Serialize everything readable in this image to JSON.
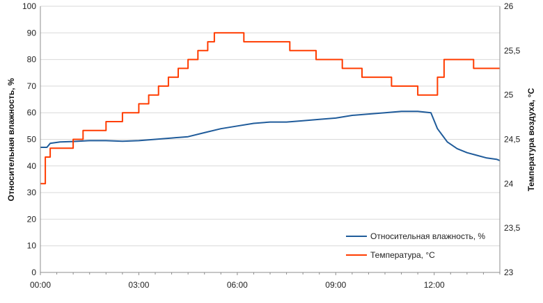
{
  "chart_data": {
    "type": "line",
    "x_axis": {
      "ticks": [
        "00:00",
        "03:00",
        "06:00",
        "09:00",
        "12:00"
      ],
      "tick_hours": [
        0,
        3,
        6,
        9,
        12
      ],
      "range_hours": [
        0,
        14
      ]
    },
    "y_left": {
      "label": "Относительная влажность, %",
      "range": [
        0,
        100
      ],
      "ticks": [
        "0",
        "10",
        "20",
        "30",
        "40",
        "50",
        "60",
        "70",
        "80",
        "90",
        "100"
      ]
    },
    "y_right": {
      "label": "Температура воздуха, °C",
      "range": [
        23,
        26
      ],
      "ticks": [
        "23",
        "23,5",
        "24",
        "24,5",
        "25",
        "25,5",
        "26"
      ]
    },
    "grid": "horizontal",
    "legend_position": "bottom-right",
    "series": [
      {
        "name": "Относительная влажность, %",
        "axis": "left",
        "color": "#1f5b9a",
        "x_hours": [
          0,
          0.2,
          0.3,
          0.6,
          1.0,
          1.5,
          2.0,
          2.5,
          3.0,
          3.5,
          4.0,
          4.5,
          5.0,
          5.5,
          6.0,
          6.5,
          7.0,
          7.5,
          8.0,
          8.5,
          9.0,
          9.5,
          10.0,
          10.5,
          11.0,
          11.5,
          11.9,
          12.1,
          12.4,
          12.7,
          13.0,
          13.3,
          13.6,
          13.9,
          14.0
        ],
        "values": [
          47,
          47,
          48.5,
          49,
          49.2,
          49.5,
          49.5,
          49.3,
          49.5,
          50,
          50.5,
          51,
          52.5,
          54,
          55,
          56,
          56.5,
          56.5,
          57,
          57.5,
          58,
          59,
          59.5,
          60,
          60.5,
          60.5,
          60,
          54,
          49,
          46.5,
          45,
          44,
          43,
          42.5,
          42
        ]
      },
      {
        "name": "Температура, °C",
        "axis": "right",
        "color": "#ff3c00",
        "x_hours": [
          0,
          0.15,
          0.15,
          0.3,
          0.3,
          1.0,
          1.0,
          1.3,
          1.3,
          2.0,
          2.0,
          2.5,
          2.5,
          3.0,
          3.0,
          3.3,
          3.3,
          3.6,
          3.6,
          3.9,
          3.9,
          4.2,
          4.2,
          4.5,
          4.5,
          4.8,
          4.8,
          5.1,
          5.1,
          5.3,
          5.3,
          6.2,
          6.2,
          7.6,
          7.6,
          8.4,
          8.4,
          9.2,
          9.2,
          9.8,
          9.8,
          10.7,
          10.7,
          11.5,
          11.5,
          12.1,
          12.1,
          12.3,
          12.3,
          13.2,
          13.2,
          14.0
        ],
        "values": [
          24.0,
          24.0,
          24.3,
          24.3,
          24.4,
          24.4,
          24.5,
          24.5,
          24.6,
          24.6,
          24.7,
          24.7,
          24.8,
          24.8,
          24.9,
          24.9,
          25.0,
          25.0,
          25.1,
          25.1,
          25.2,
          25.2,
          25.3,
          25.3,
          25.4,
          25.4,
          25.5,
          25.5,
          25.6,
          25.6,
          25.7,
          25.7,
          25.6,
          25.6,
          25.5,
          25.5,
          25.4,
          25.4,
          25.3,
          25.3,
          25.2,
          25.2,
          25.1,
          25.1,
          25.0,
          25.0,
          25.2,
          25.2,
          25.4,
          25.4,
          25.3,
          25.3
        ]
      }
    ]
  }
}
